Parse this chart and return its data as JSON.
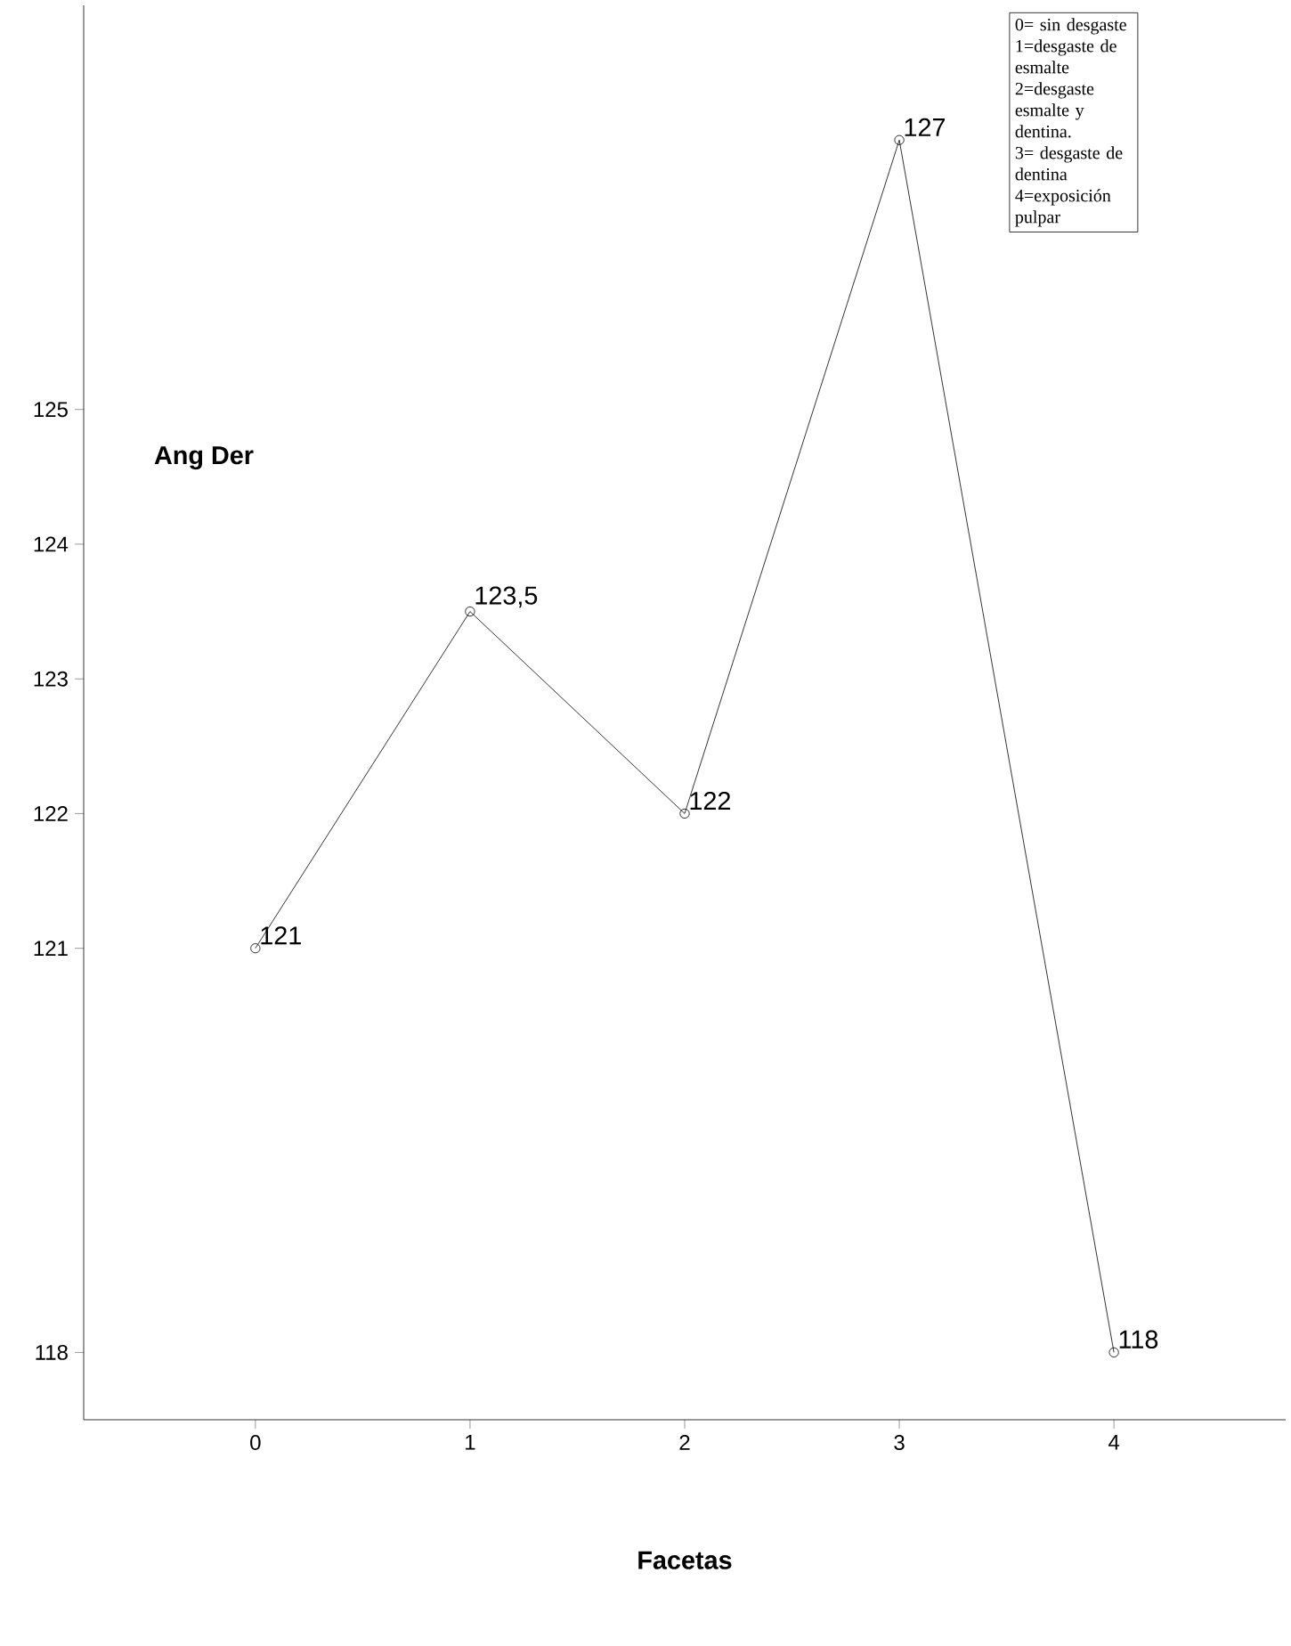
{
  "chart_data": {
    "type": "line",
    "xlabel": "Facetas",
    "ylabel": "Ang Der",
    "categories": [
      "0",
      "1",
      "2",
      "3",
      "4"
    ],
    "values": [
      121,
      123.5,
      122,
      127,
      118
    ],
    "value_labels": [
      "121",
      "123,5",
      "122",
      "127",
      "118"
    ],
    "color": "#000000",
    "marker": "circle",
    "line_style": "solid",
    "ylim": [
      117.5,
      128
    ],
    "yticks": [
      118,
      121,
      122,
      123,
      124,
      125
    ],
    "annotations": [
      "0= sin desgaste",
      "1=desgaste de esmalte",
      "2=desgaste esmalte y dentina.",
      "3= desgaste de dentina",
      "4=exposición pulpar"
    ]
  }
}
